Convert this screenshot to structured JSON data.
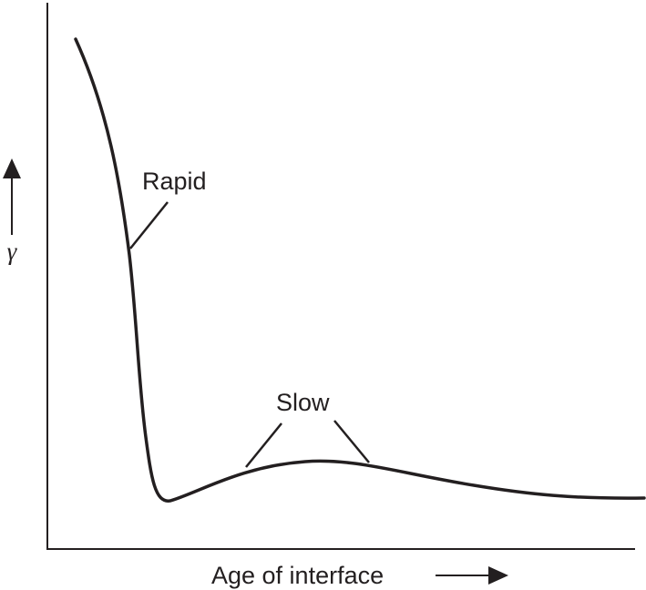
{
  "figure": {
    "y_axis_label": "γ",
    "x_axis_label": "Age of interface",
    "annotations": {
      "rapid": "Rapid",
      "slow": "Slow"
    },
    "line_color": "#231f20"
  }
}
